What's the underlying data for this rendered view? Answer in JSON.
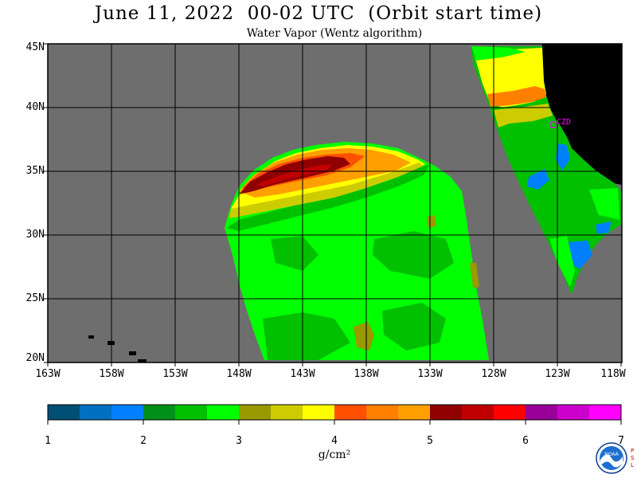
{
  "title": "June 11, 2022  00-02 UTC  (Orbit start time)",
  "subtitle": "Water Vapor (Wentz algorithm)",
  "map": {
    "lat_labels": [
      "45N",
      "40N",
      "35N",
      "30N",
      "25N",
      "20N"
    ],
    "lon_labels": [
      "163W",
      "158W",
      "153W",
      "148W",
      "143W",
      "138W",
      "133W",
      "128W",
      "123W",
      "118W"
    ],
    "station_label": "CZD",
    "no_data_color": "#6e6e6e",
    "land_color": "#000000",
    "station_color": "#ff00ff"
  },
  "colorbar": {
    "tick_labels": [
      "1",
      "2",
      "3",
      "4",
      "5",
      "6",
      "7"
    ],
    "unit": "g/cm²",
    "colors": [
      "#004f74",
      "#0070c0",
      "#0080ff",
      "#00901a",
      "#00c000",
      "#00ff00",
      "#999900",
      "#cccc00",
      "#ffff00",
      "#ff5000",
      "#ff8000",
      "#ffa000",
      "#900000",
      "#c00000",
      "#ff0000",
      "#990099",
      "#cc00cc",
      "#ff00ff"
    ]
  },
  "logo": {
    "text": "NOAA",
    "side_text": "PSL"
  }
}
